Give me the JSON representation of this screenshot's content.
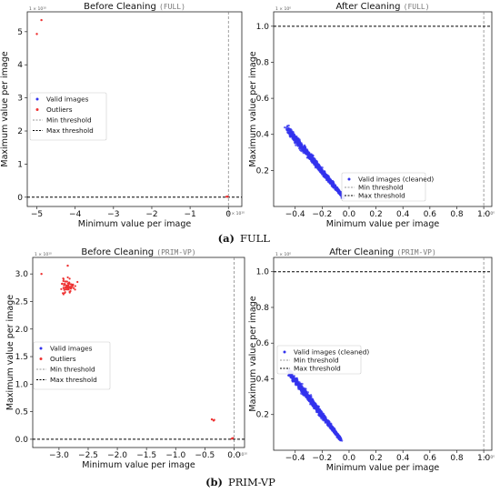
{
  "captions": [
    {
      "letter": "(a)",
      "name": "FULL"
    },
    {
      "letter": "(b)",
      "name": "PRIM-VP"
    }
  ],
  "chart_data": [
    {
      "type": "scatter",
      "title_prefix": "Before Cleaning ",
      "title_tag": "(FULL)",
      "xlabel": "Minimum value per image",
      "ylabel": "Maximum value per image",
      "x_multiplier": "1 × 10¹⁰",
      "y_multiplier": "1 × 10¹⁰",
      "xlim": [
        -5.25,
        0.35
      ],
      "ylim": [
        -0.28,
        5.6
      ],
      "xticks": [
        -5,
        -4,
        -3,
        -2,
        -1,
        0
      ],
      "yticks": [
        0,
        1,
        2,
        3,
        4,
        5
      ],
      "min_threshold": 0,
      "max_threshold": 0,
      "legend": [
        "Valid images",
        "Outliers",
        "Min threshold",
        "Max threshold"
      ],
      "legend_position": "center-left",
      "outliers": [
        [
          -4.88,
          5.35
        ],
        [
          -5.0,
          4.93
        ],
        [
          -0.02,
          0.02
        ],
        [
          -0.05,
          0.015
        ]
      ],
      "colors": {
        "valid": "#3333ee",
        "outlier": "#ee3333",
        "min": "#777777",
        "max": "#000000"
      }
    },
    {
      "type": "scatter",
      "title_prefix": "After Cleaning ",
      "title_tag": "(FULL)",
      "xlabel": "Minimum value per image",
      "ylabel": "Maximum value per image",
      "x_multiplier": "1 × 10⁰",
      "y_multiplier": "1 × 10⁰",
      "xlim": [
        -0.56,
        1.06
      ],
      "ylim": [
        0.0,
        1.08
      ],
      "xticks": [
        -0.4,
        -0.2,
        0.0,
        0.2,
        0.4,
        0.6,
        0.8,
        1.0
      ],
      "yticks": [
        0.2,
        0.4,
        0.6,
        0.8,
        1.0
      ],
      "min_threshold": 1.0,
      "max_threshold": 1.0,
      "legend": [
        "Valid images (cleaned)",
        "Min threshold",
        "Max threshold"
      ],
      "legend_position": "lower-right",
      "valid_cluster": {
        "x_start": -0.46,
        "y_start": 0.43,
        "x_end": -0.04,
        "y_end": 0.05,
        "count": 1200
      },
      "colors": {
        "valid": "#3333ee",
        "min": "#777777",
        "max": "#000000"
      }
    },
    {
      "type": "scatter",
      "title_prefix": "Before Cleaning ",
      "title_tag": "(PRIM-VP)",
      "xlabel": "Minimum value per image",
      "ylabel": "Maximum value per image",
      "x_multiplier": "1 × 10¹⁰",
      "y_multiplier": "1 × 10¹⁰",
      "xlim": [
        -3.45,
        0.18
      ],
      "ylim": [
        -0.15,
        3.3
      ],
      "xticks": [
        -3.0,
        -2.5,
        -2.0,
        -1.5,
        -1.0,
        -0.5,
        0.0
      ],
      "yticks": [
        0.0,
        0.5,
        1.0,
        1.5,
        2.0,
        2.5,
        3.0
      ],
      "min_threshold": 0,
      "max_threshold": 0,
      "legend": [
        "Valid images",
        "Outliers",
        "Min threshold",
        "Max threshold"
      ],
      "legend_position": "center-left",
      "outlier_cluster": {
        "x_center": -2.85,
        "y_center": 2.78,
        "count": 60
      },
      "outliers": [
        [
          -3.3,
          3.0
        ],
        [
          -2.85,
          3.15
        ],
        [
          -0.38,
          0.36
        ],
        [
          -0.35,
          0.34
        ],
        [
          -0.34,
          0.35
        ],
        [
          -0.02,
          0.02
        ],
        [
          -0.04,
          0.01
        ]
      ],
      "colors": {
        "valid": "#3333ee",
        "outlier": "#ee3333",
        "min": "#777777",
        "max": "#000000"
      }
    },
    {
      "type": "scatter",
      "title_prefix": "After Cleaning ",
      "title_tag": "(PRIM-VP)",
      "xlabel": "Minimum value per image",
      "ylabel": "Maximum value per image",
      "x_multiplier": "1 × 10⁰",
      "y_multiplier": "1 × 10⁰",
      "xlim": [
        -0.56,
        1.06
      ],
      "ylim": [
        0.0,
        1.08
      ],
      "xticks": [
        -0.4,
        -0.2,
        0.0,
        0.2,
        0.4,
        0.6,
        0.8,
        1.0
      ],
      "yticks": [
        0.2,
        0.4,
        0.6,
        0.8,
        1.0
      ],
      "min_threshold": 1.0,
      "max_threshold": 1.0,
      "legend": [
        "Valid images (cleaned)",
        "Min threshold",
        "Max threshold"
      ],
      "legend_position": "center-left",
      "valid_cluster": {
        "x_start": -0.45,
        "y_start": 0.44,
        "x_end": -0.06,
        "y_end": 0.06,
        "count": 1200
      },
      "colors": {
        "valid": "#3333ee",
        "min": "#777777",
        "max": "#000000"
      }
    }
  ]
}
